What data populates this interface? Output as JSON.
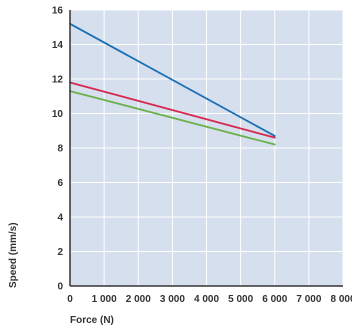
{
  "chart_data": {
    "type": "line",
    "xlabel": "Force (N)",
    "ylabel": "Speed (mm/s)",
    "xlim": [
      0,
      8000
    ],
    "ylim": [
      0,
      16
    ],
    "x_ticks": [
      0,
      1000,
      2000,
      3000,
      4000,
      5000,
      6000,
      7000,
      8000
    ],
    "x_tick_labels": [
      "0",
      "1 000",
      "2 000",
      "3 000",
      "4 000",
      "5 000",
      "6 000",
      "7 000",
      "8 000"
    ],
    "y_ticks": [
      0,
      2,
      4,
      6,
      8,
      10,
      12,
      14,
      16
    ],
    "y_tick_labels": [
      "0",
      "2",
      "4",
      "6",
      "8",
      "10",
      "12",
      "14",
      "16"
    ],
    "grid": true,
    "background_color": "#d6dfed",
    "series": [
      {
        "color": "#1a6fb5",
        "x": [
          0,
          6000
        ],
        "y": [
          15.2,
          8.7
        ]
      },
      {
        "color": "#d7284f",
        "x": [
          0,
          6000
        ],
        "y": [
          11.8,
          8.6
        ]
      },
      {
        "color": "#6ab04c",
        "x": [
          0,
          6000
        ],
        "y": [
          11.3,
          8.2
        ]
      }
    ]
  }
}
